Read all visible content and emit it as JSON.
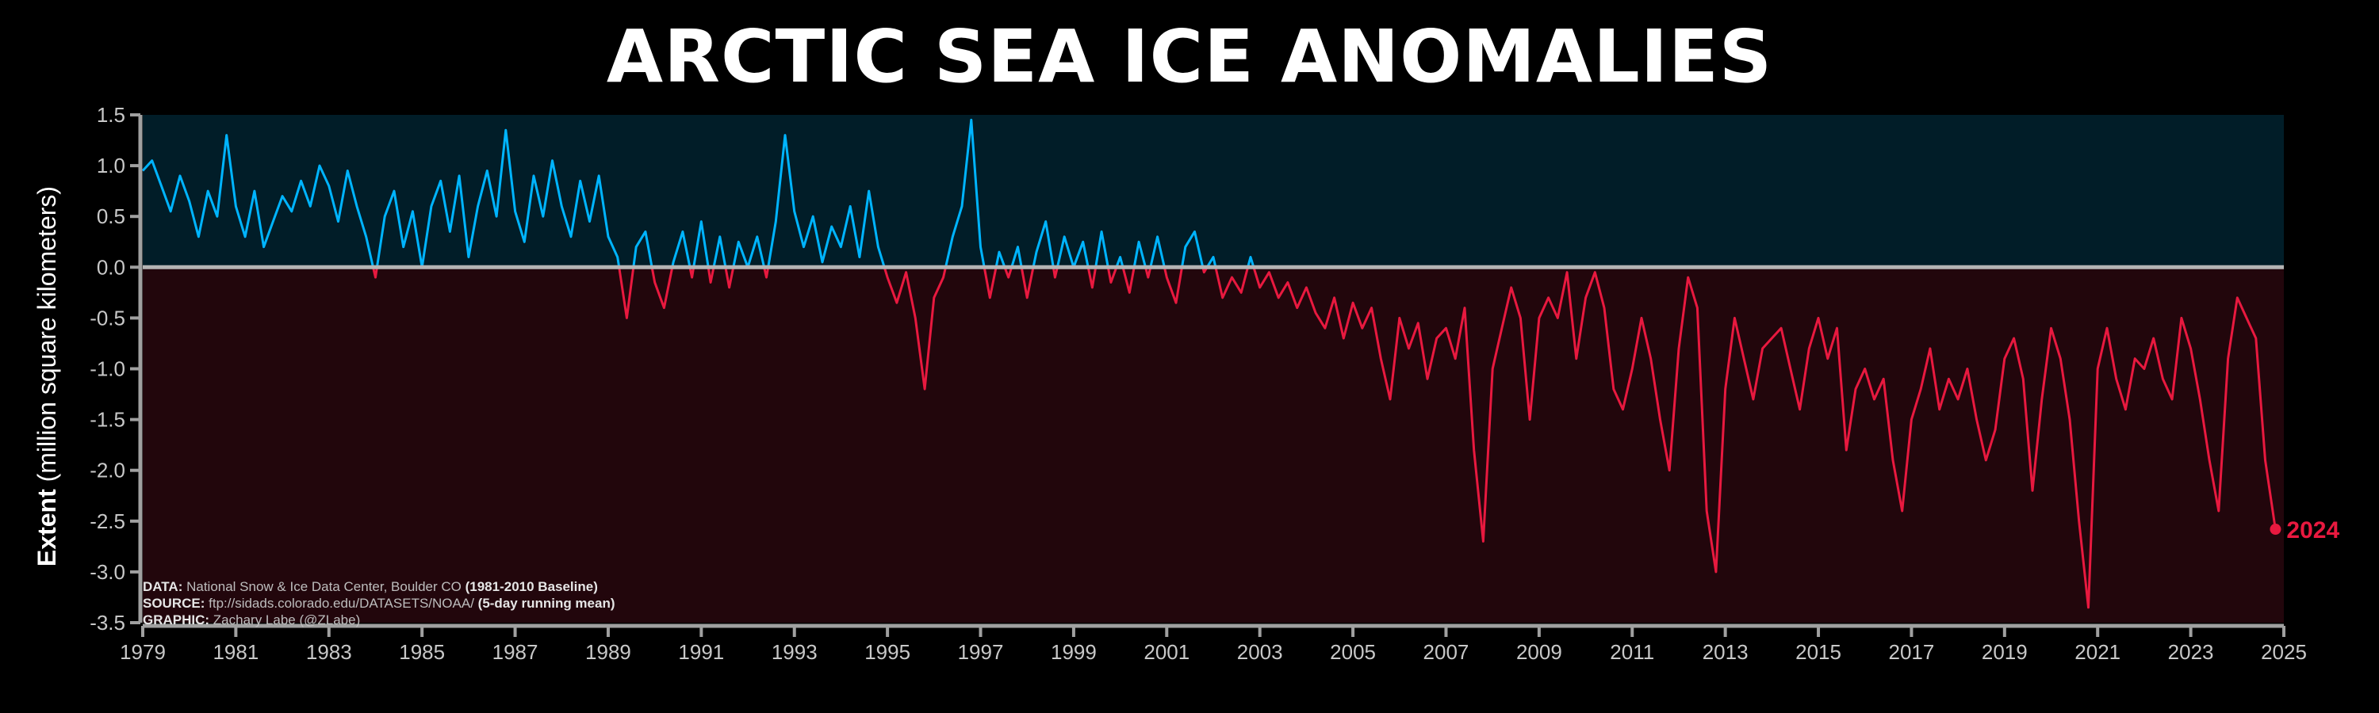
{
  "title": "ARCTIC SEA ICE ANOMALIES",
  "y_axis": {
    "label_bold": "Extent",
    "label_rest": " (million square kilometers)"
  },
  "credits": [
    {
      "bold": "DATA:",
      "text": " National Snow & Ice Data Center, Boulder CO ",
      "bold2": "(1981-2010 Baseline)"
    },
    {
      "bold": "SOURCE:",
      "text": " ftp://sidads.colorado.edu/DATASETS/NOAA/ ",
      "bold2": "(5-day running mean)"
    },
    {
      "bold": "GRAPHIC:",
      "text": " Zachary Labe (@ZLabe)",
      "bold2": ""
    }
  ],
  "colors": {
    "positive": "#00b4ff",
    "negative": "#e8193f",
    "pos_bg": "#011d28",
    "neg_bg": "#22060c",
    "zero_line": "#b4b4b4",
    "axes": "#a0a0a0"
  },
  "chart_data": {
    "type": "line",
    "x_unit": "year",
    "xlim": [
      1979,
      2025
    ],
    "ylim": [
      -3.5,
      1.5
    ],
    "xticks": [
      "1979",
      "1981",
      "1983",
      "1985",
      "1987",
      "1989",
      "1991",
      "1993",
      "1995",
      "1997",
      "1999",
      "2001",
      "2003",
      "2005",
      "2007",
      "2009",
      "2011",
      "2013",
      "2015",
      "2017",
      "2019",
      "2021",
      "2023",
      "2025"
    ],
    "yticks": [
      "1.5",
      "1.0",
      "0.5",
      "0.0",
      "-0.5",
      "-1.0",
      "-1.5",
      "-2.0",
      "-2.5",
      "-3.0",
      "-3.5"
    ],
    "ytick_values": [
      1.5,
      1.0,
      0.5,
      0.0,
      -0.5,
      -1.0,
      -1.5,
      -2.0,
      -2.5,
      -3.0,
      -3.5
    ],
    "end_label": "2024",
    "end_point": [
      2024.82,
      -2.58
    ],
    "series": [
      {
        "points": [
          [
            1979.0,
            0.95
          ],
          [
            1979.2,
            1.05
          ],
          [
            1979.4,
            0.8
          ],
          [
            1979.6,
            0.55
          ],
          [
            1979.8,
            0.9
          ],
          [
            1980.0,
            0.65
          ],
          [
            1980.2,
            0.3
          ],
          [
            1980.4,
            0.75
          ],
          [
            1980.6,
            0.5
          ],
          [
            1980.8,
            1.3
          ],
          [
            1981.0,
            0.6
          ],
          [
            1981.2,
            0.3
          ],
          [
            1981.4,
            0.75
          ],
          [
            1981.6,
            0.2
          ],
          [
            1981.8,
            0.45
          ],
          [
            1982.0,
            0.7
          ],
          [
            1982.2,
            0.55
          ],
          [
            1982.4,
            0.85
          ],
          [
            1982.6,
            0.6
          ],
          [
            1982.8,
            1.0
          ],
          [
            1983.0,
            0.8
          ],
          [
            1983.2,
            0.45
          ],
          [
            1983.4,
            0.95
          ],
          [
            1983.6,
            0.6
          ],
          [
            1983.8,
            0.3
          ],
          [
            1984.0,
            -0.1
          ],
          [
            1984.2,
            0.5
          ],
          [
            1984.4,
            0.75
          ],
          [
            1984.6,
            0.2
          ],
          [
            1984.8,
            0.55
          ],
          [
            1985.0,
            0.0
          ],
          [
            1985.2,
            0.6
          ],
          [
            1985.4,
            0.85
          ],
          [
            1985.6,
            0.35
          ],
          [
            1985.8,
            0.9
          ],
          [
            1986.0,
            0.1
          ],
          [
            1986.2,
            0.6
          ],
          [
            1986.4,
            0.95
          ],
          [
            1986.6,
            0.5
          ],
          [
            1986.8,
            1.35
          ],
          [
            1987.0,
            0.55
          ],
          [
            1987.2,
            0.25
          ],
          [
            1987.4,
            0.9
          ],
          [
            1987.6,
            0.5
          ],
          [
            1987.8,
            1.05
          ],
          [
            1988.0,
            0.6
          ],
          [
            1988.2,
            0.3
          ],
          [
            1988.4,
            0.85
          ],
          [
            1988.6,
            0.45
          ],
          [
            1988.8,
            0.9
          ],
          [
            1989.0,
            0.3
          ],
          [
            1989.2,
            0.1
          ],
          [
            1989.4,
            -0.5
          ],
          [
            1989.6,
            0.2
          ],
          [
            1989.8,
            0.35
          ],
          [
            1990.0,
            -0.15
          ],
          [
            1990.2,
            -0.4
          ],
          [
            1990.4,
            0.05
          ],
          [
            1990.6,
            0.35
          ],
          [
            1990.8,
            -0.1
          ],
          [
            1991.0,
            0.45
          ],
          [
            1991.2,
            -0.15
          ],
          [
            1991.4,
            0.3
          ],
          [
            1991.6,
            -0.2
          ],
          [
            1991.8,
            0.25
          ],
          [
            1992.0,
            0.0
          ],
          [
            1992.2,
            0.3
          ],
          [
            1992.4,
            -0.1
          ],
          [
            1992.6,
            0.45
          ],
          [
            1992.8,
            1.3
          ],
          [
            1993.0,
            0.55
          ],
          [
            1993.2,
            0.2
          ],
          [
            1993.4,
            0.5
          ],
          [
            1993.6,
            0.05
          ],
          [
            1993.8,
            0.4
          ],
          [
            1994.0,
            0.2
          ],
          [
            1994.2,
            0.6
          ],
          [
            1994.4,
            0.1
          ],
          [
            1994.6,
            0.75
          ],
          [
            1994.8,
            0.2
          ],
          [
            1995.0,
            -0.1
          ],
          [
            1995.2,
            -0.35
          ],
          [
            1995.4,
            -0.05
          ],
          [
            1995.6,
            -0.5
          ],
          [
            1995.8,
            -1.2
          ],
          [
            1996.0,
            -0.3
          ],
          [
            1996.2,
            -0.1
          ],
          [
            1996.4,
            0.3
          ],
          [
            1996.6,
            0.6
          ],
          [
            1996.8,
            1.45
          ],
          [
            1997.0,
            0.2
          ],
          [
            1997.2,
            -0.3
          ],
          [
            1997.4,
            0.15
          ],
          [
            1997.6,
            -0.1
          ],
          [
            1997.8,
            0.2
          ],
          [
            1998.0,
            -0.3
          ],
          [
            1998.2,
            0.15
          ],
          [
            1998.4,
            0.45
          ],
          [
            1998.6,
            -0.1
          ],
          [
            1998.8,
            0.3
          ],
          [
            1999.0,
            0.0
          ],
          [
            1999.2,
            0.25
          ],
          [
            1999.4,
            -0.2
          ],
          [
            1999.6,
            0.35
          ],
          [
            1999.8,
            -0.15
          ],
          [
            2000.0,
            0.1
          ],
          [
            2000.2,
            -0.25
          ],
          [
            2000.4,
            0.25
          ],
          [
            2000.6,
            -0.1
          ],
          [
            2000.8,
            0.3
          ],
          [
            2001.0,
            -0.1
          ],
          [
            2001.2,
            -0.35
          ],
          [
            2001.4,
            0.2
          ],
          [
            2001.6,
            0.35
          ],
          [
            2001.8,
            -0.05
          ],
          [
            2002.0,
            0.1
          ],
          [
            2002.2,
            -0.3
          ],
          [
            2002.4,
            -0.1
          ],
          [
            2002.6,
            -0.25
          ],
          [
            2002.8,
            0.1
          ],
          [
            2003.0,
            -0.2
          ],
          [
            2003.2,
            -0.05
          ],
          [
            2003.4,
            -0.3
          ],
          [
            2003.6,
            -0.15
          ],
          [
            2003.8,
            -0.4
          ],
          [
            2004.0,
            -0.2
          ],
          [
            2004.2,
            -0.45
          ],
          [
            2004.4,
            -0.6
          ],
          [
            2004.6,
            -0.3
          ],
          [
            2004.8,
            -0.7
          ],
          [
            2005.0,
            -0.35
          ],
          [
            2005.2,
            -0.6
          ],
          [
            2005.4,
            -0.4
          ],
          [
            2005.6,
            -0.9
          ],
          [
            2005.8,
            -1.3
          ],
          [
            2006.0,
            -0.5
          ],
          [
            2006.2,
            -0.8
          ],
          [
            2006.4,
            -0.55
          ],
          [
            2006.6,
            -1.1
          ],
          [
            2006.8,
            -0.7
          ],
          [
            2007.0,
            -0.6
          ],
          [
            2007.2,
            -0.9
          ],
          [
            2007.4,
            -0.4
          ],
          [
            2007.6,
            -1.8
          ],
          [
            2007.8,
            -2.7
          ],
          [
            2008.0,
            -1.0
          ],
          [
            2008.2,
            -0.6
          ],
          [
            2008.4,
            -0.2
          ],
          [
            2008.6,
            -0.5
          ],
          [
            2008.8,
            -1.5
          ],
          [
            2009.0,
            -0.5
          ],
          [
            2009.2,
            -0.3
          ],
          [
            2009.4,
            -0.5
          ],
          [
            2009.6,
            -0.05
          ],
          [
            2009.8,
            -0.9
          ],
          [
            2010.0,
            -0.3
          ],
          [
            2010.2,
            -0.05
          ],
          [
            2010.4,
            -0.4
          ],
          [
            2010.6,
            -1.2
          ],
          [
            2010.8,
            -1.4
          ],
          [
            2011.0,
            -1.0
          ],
          [
            2011.2,
            -0.5
          ],
          [
            2011.4,
            -0.9
          ],
          [
            2011.6,
            -1.5
          ],
          [
            2011.8,
            -2.0
          ],
          [
            2012.0,
            -0.8
          ],
          [
            2012.2,
            -0.1
          ],
          [
            2012.4,
            -0.4
          ],
          [
            2012.6,
            -2.4
          ],
          [
            2012.8,
            -3.0
          ],
          [
            2013.0,
            -1.2
          ],
          [
            2013.2,
            -0.5
          ],
          [
            2013.4,
            -0.9
          ],
          [
            2013.6,
            -1.3
          ],
          [
            2013.8,
            -0.8
          ],
          [
            2014.0,
            -0.7
          ],
          [
            2014.2,
            -0.6
          ],
          [
            2014.4,
            -1.0
          ],
          [
            2014.6,
            -1.4
          ],
          [
            2014.8,
            -0.8
          ],
          [
            2015.0,
            -0.5
          ],
          [
            2015.2,
            -0.9
          ],
          [
            2015.4,
            -0.6
          ],
          [
            2015.6,
            -1.8
          ],
          [
            2015.8,
            -1.2
          ],
          [
            2016.0,
            -1.0
          ],
          [
            2016.2,
            -1.3
          ],
          [
            2016.4,
            -1.1
          ],
          [
            2016.6,
            -1.9
          ],
          [
            2016.8,
            -2.4
          ],
          [
            2017.0,
            -1.5
          ],
          [
            2017.2,
            -1.2
          ],
          [
            2017.4,
            -0.8
          ],
          [
            2017.6,
            -1.4
          ],
          [
            2017.8,
            -1.1
          ],
          [
            2018.0,
            -1.3
          ],
          [
            2018.2,
            -1.0
          ],
          [
            2018.4,
            -1.5
          ],
          [
            2018.6,
            -1.9
          ],
          [
            2018.8,
            -1.6
          ],
          [
            2019.0,
            -0.9
          ],
          [
            2019.2,
            -0.7
          ],
          [
            2019.4,
            -1.1
          ],
          [
            2019.6,
            -2.2
          ],
          [
            2019.8,
            -1.3
          ],
          [
            2020.0,
            -0.6
          ],
          [
            2020.2,
            -0.9
          ],
          [
            2020.4,
            -1.5
          ],
          [
            2020.6,
            -2.5
          ],
          [
            2020.8,
            -3.35
          ],
          [
            2021.0,
            -1.0
          ],
          [
            2021.2,
            -0.6
          ],
          [
            2021.4,
            -1.1
          ],
          [
            2021.6,
            -1.4
          ],
          [
            2021.8,
            -0.9
          ],
          [
            2022.0,
            -1.0
          ],
          [
            2022.2,
            -0.7
          ],
          [
            2022.4,
            -1.1
          ],
          [
            2022.6,
            -1.3
          ],
          [
            2022.8,
            -0.5
          ],
          [
            2023.0,
            -0.8
          ],
          [
            2023.2,
            -1.3
          ],
          [
            2023.4,
            -1.9
          ],
          [
            2023.6,
            -2.4
          ],
          [
            2023.8,
            -0.9
          ],
          [
            2024.0,
            -0.3
          ],
          [
            2024.2,
            -0.5
          ],
          [
            2024.4,
            -0.7
          ],
          [
            2024.6,
            -1.9
          ],
          [
            2024.82,
            -2.58
          ]
        ]
      }
    ]
  }
}
